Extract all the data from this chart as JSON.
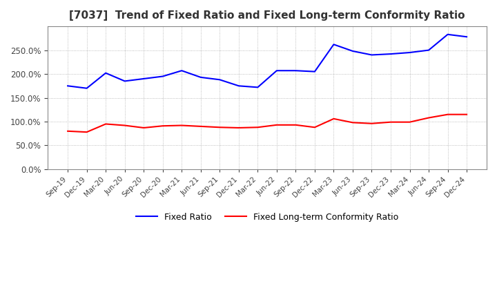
{
  "title": "[7037]  Trend of Fixed Ratio and Fixed Long-term Conformity Ratio",
  "title_fontsize": 11,
  "background_color": "#ffffff",
  "plot_bg_color": "#ffffff",
  "grid_color": "#aaaaaa",
  "x_labels": [
    "Sep-19",
    "Dec-19",
    "Mar-20",
    "Jun-20",
    "Sep-20",
    "Dec-20",
    "Mar-21",
    "Jun-21",
    "Sep-21",
    "Dec-21",
    "Mar-22",
    "Jun-22",
    "Sep-22",
    "Dec-22",
    "Mar-23",
    "Jun-23",
    "Sep-23",
    "Dec-23",
    "Mar-24",
    "Jun-24",
    "Sep-24",
    "Dec-24"
  ],
  "fixed_ratio": [
    175,
    170,
    202,
    185,
    190,
    195,
    207,
    193,
    188,
    175,
    172,
    207,
    207,
    205,
    262,
    248,
    240,
    242,
    245,
    250,
    283,
    278
  ],
  "fixed_lt_ratio": [
    80,
    78,
    95,
    92,
    87,
    91,
    92,
    90,
    88,
    87,
    88,
    93,
    93,
    88,
    106,
    98,
    96,
    99,
    99,
    108,
    115,
    115
  ],
  "fixed_ratio_color": "#0000ff",
  "fixed_lt_ratio_color": "#ff0000",
  "ylim": [
    0,
    300
  ],
  "yticks": [
    0,
    50,
    100,
    150,
    200,
    250
  ],
  "legend_labels": [
    "Fixed Ratio",
    "Fixed Long-term Conformity Ratio"
  ],
  "line_width": 1.5
}
